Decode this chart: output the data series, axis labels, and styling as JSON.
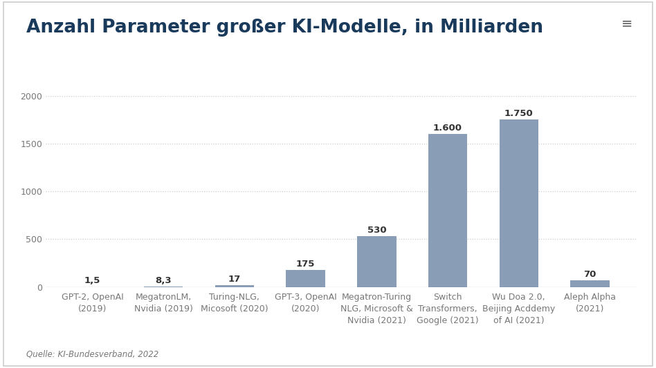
{
  "title": "Anzahl Parameter großer KI-Modelle, in Milliarden",
  "source": "Quelle: KI-Bundesverband, 2022",
  "categories": [
    "GPT-2, OpenAI\n(2019)",
    "MegatronLM,\nNvidia (2019)",
    "Turing-NLG,\nMicosoft (2020)",
    "GPT-3, OpenAI\n(2020)",
    "Megatron-Turing\nNLG, Microsoft &\nNvidia (2021)",
    "Switch\nTransformers,\nGoogle (2021)",
    "Wu Doa 2.0,\nBeijing Acddemy\nof AI (2021)",
    "Aleph Alpha\n(2021)"
  ],
  "values": [
    1.5,
    8.3,
    17,
    175,
    530,
    1600,
    1750,
    70
  ],
  "bar_color": "#8A9DB7",
  "background_color": "#FFFFFF",
  "border_color": "#CCCCCC",
  "ylim": [
    0,
    2000
  ],
  "yticks": [
    0,
    500,
    1000,
    1500,
    2000
  ],
  "title_fontsize": 19,
  "label_fontsize": 9.5,
  "tick_fontsize": 9,
  "source_fontsize": 8.5,
  "value_labels": [
    "1,5",
    "8,3",
    "17",
    "175",
    "530",
    "1.600",
    "1.750",
    "70"
  ],
  "title_color": "#1a3a5c",
  "text_color": "#333333",
  "axis_color": "#777777",
  "grid_color": "#CCCCCC",
  "ytick_color": "#777777"
}
